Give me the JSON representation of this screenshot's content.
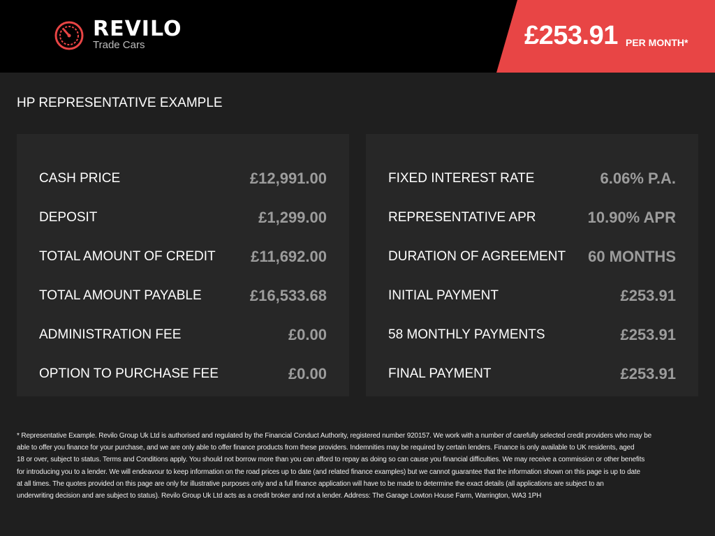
{
  "header": {
    "brand": "REVILO",
    "tagline": "Trade Cars",
    "logo_icon": "speedometer-icon",
    "monthly_price": "£253.91",
    "per_month_label": "PER MONTH*",
    "accent_color": "#e84545"
  },
  "title": "HP REPRESENTATIVE EXAMPLE",
  "left_panel": [
    {
      "label": "CASH PRICE",
      "value": "£12,991.00"
    },
    {
      "label": "DEPOSIT",
      "value": "£1,299.00"
    },
    {
      "label": "TOTAL AMOUNT OF CREDIT",
      "value": "£11,692.00"
    },
    {
      "label": "TOTAL AMOUNT PAYABLE",
      "value": "£16,533.68"
    },
    {
      "label": "ADMINISTRATION FEE",
      "value": "£0.00"
    },
    {
      "label": "OPTION TO PURCHASE FEE",
      "value": "£0.00"
    }
  ],
  "right_panel": [
    {
      "label": "FIXED INTEREST RATE",
      "value": "6.06% P.A."
    },
    {
      "label": "REPRESENTATIVE APR",
      "value": "10.90% APR"
    },
    {
      "label": "DURATION OF AGREEMENT",
      "value": "60 MONTHS"
    },
    {
      "label": "INITIAL PAYMENT",
      "value": "£253.91"
    },
    {
      "label": "58 MONTHLY PAYMENTS",
      "value": "£253.91"
    },
    {
      "label": "FINAL PAYMENT",
      "value": "£253.91"
    }
  ],
  "footer_lines": [
    "* Representative Example. Revilo Group Uk Ltd is authorised and regulated by the Financial Conduct Authority, registered number 920157. We work with a number of carefully selected credit providers who may be",
    "able to offer you finance for your purchase, and we are only able to offer finance products from these providers. Indemnities may be required by certain lenders. Finance is only available to UK residents, aged",
    "18 or over, subject to status. Terms and Conditions apply. You should not borrow more than you can afford to repay as doing so can cause you financial difficulties. We may receive a commission or other benefits",
    "for introducing you to a lender. We will endeavour to keep information on the road prices up to date (and related finance examples) but we cannot guarantee that the information shown on this page is up to date",
    "at all times. The quotes provided on this page are only for illustrative purposes only and a full finance application will have to be made to determine the exact details (all applications are subject to an",
    "underwriting decision and are subject to status). Revilo Group Uk Ltd acts as a credit broker and not a lender. Address: The Garage Lowton House Farm, Warrington, WA3 1PH"
  ]
}
